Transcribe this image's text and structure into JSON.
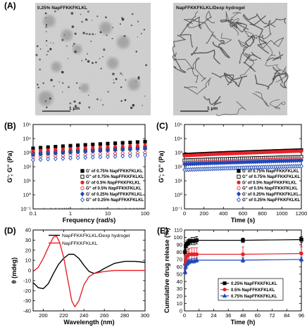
{
  "panels": {
    "A": {
      "label": "(A)",
      "image_left": {
        "caption": "0.25% NapFFKKFKLKL",
        "scalebar": "1 μm"
      },
      "image_right": {
        "caption": "NapFFKKFKLKL/Dexp hydrogel",
        "scalebar": "1 μm"
      }
    },
    "B": {
      "label": "(B)"
    },
    "C": {
      "label": "(C)"
    },
    "D": {
      "label": "(D)"
    },
    "E": {
      "label": "(E)"
    }
  },
  "chart_data": [
    {
      "id": "B",
      "type": "scatter",
      "xlabel": "Frequency (rad/s)",
      "ylabel": "G'; G'' (Pa)",
      "xscale": "log",
      "yscale": "log",
      "xlim": [
        0.1,
        100
      ],
      "ylim": [
        0.1,
        100000
      ],
      "xticks": [
        0.1,
        1,
        10,
        100
      ],
      "xticklabels": [
        "0.1",
        "1",
        "10",
        "100"
      ],
      "yticks": [
        0.1,
        1,
        10,
        100,
        1000,
        10000,
        100000
      ],
      "yticklabels": [
        "10⁻¹",
        "10⁰",
        "10¹",
        "10²",
        "10³",
        "10⁴",
        "10⁵"
      ],
      "legend": "bottom-right",
      "series": [
        {
          "name": "G' of 0.75% NapFFKKFKLKL",
          "color": "#000000",
          "marker": "square",
          "filled": true,
          "y_start": 2000,
          "y_end": 6000
        },
        {
          "name": "G'' of 0.75% NapFFKKFKLKL",
          "color": "#000000",
          "marker": "square",
          "filled": false,
          "y_start": 800,
          "y_end": 2100
        },
        {
          "name": "G' of 0.5% NapFFKKFKLKL",
          "color": "#e8222a",
          "marker": "circle",
          "filled": true,
          "y_start": 1300,
          "y_end": 3300
        },
        {
          "name": "G'' of 0.5% NapFFKKFKLKL",
          "color": "#e8222a",
          "marker": "circle",
          "filled": false,
          "y_start": 500,
          "y_end": 1000
        },
        {
          "name": "G' of 0.25% NapFFKKFKLKL",
          "color": "#1f48b8",
          "marker": "diamond",
          "filled": true,
          "y_start": 700,
          "y_end": 2000
        },
        {
          "name": "G'' of 0.25% NapFFKKFKLKL",
          "color": "#1f48b8",
          "marker": "diamond",
          "filled": false,
          "y_start": 300,
          "y_end": 650
        }
      ]
    },
    {
      "id": "C",
      "type": "scatter",
      "xlabel": "Time (s)",
      "ylabel": "G'; G'' (Pa)",
      "yscale": "log",
      "xlim": [
        0,
        1200
      ],
      "ylim": [
        0.1,
        100000
      ],
      "xticks": [
        0,
        200,
        400,
        600,
        800,
        1000,
        1200
      ],
      "xticklabels": [
        "0",
        "200",
        "400",
        "600",
        "800",
        "1000",
        "1200"
      ],
      "yticks": [
        0.1,
        1,
        10,
        100,
        1000,
        10000,
        100000
      ],
      "yticklabels": [
        "10⁻¹",
        "10⁰",
        "10¹",
        "10²",
        "10³",
        "10⁴",
        "10⁵"
      ],
      "legend": "bottom-right",
      "series": [
        {
          "name": "G' of 0.75% NapFFKKFKLKL",
          "color": "#000000",
          "marker": "square",
          "filled": true,
          "y_start": 700,
          "y_end": 1500
        },
        {
          "name": "G'' of 0.75% NapFFKKFKLKL",
          "color": "#000000",
          "marker": "square",
          "filled": false,
          "y_start": 280,
          "y_end": 500
        },
        {
          "name": "G' of 0.5% NapFFKKFKLKL",
          "color": "#e8222a",
          "marker": "circle",
          "filled": true,
          "y_start": 600,
          "y_end": 1300
        },
        {
          "name": "G'' of 0.5% NapFFKKFKLKL",
          "color": "#e8222a",
          "marker": "circle",
          "filled": false,
          "y_start": 180,
          "y_end": 350
        },
        {
          "name": "G' of 0.25% NapFFKKFKLKL",
          "color": "#1f48b8",
          "marker": "diamond",
          "filled": true,
          "y_start": 150,
          "y_end": 280
        },
        {
          "name": "G'' of 0.25% NapFFKKFKLKL",
          "color": "#1f48b8",
          "marker": "diamond",
          "filled": false,
          "y_start": 60,
          "y_end": 110
        }
      ]
    },
    {
      "id": "D",
      "type": "line",
      "xlabel": "Wavelength (nm)",
      "ylabel": "θ (mdeg)",
      "xlim": [
        190,
        300
      ],
      "ylim": [
        -40,
        40
      ],
      "xticks": [
        200,
        220,
        240,
        260,
        280,
        300
      ],
      "xticklabels": [
        "200",
        "220",
        "240",
        "260",
        "280",
        "300"
      ],
      "yticks": [
        -40,
        -30,
        -20,
        -10,
        0,
        10,
        20,
        30,
        40
      ],
      "yticklabels": [
        "-40",
        "-30",
        "-20",
        "-10",
        "0",
        "10",
        "20",
        "30",
        "40"
      ],
      "legend": "top-right",
      "series": [
        {
          "name": "NapFFKKFKLKL/Dexp hydrogel",
          "color": "#000000",
          "x": [
            190,
            195,
            200,
            205,
            210,
            215,
            220,
            225,
            230,
            235,
            240,
            245,
            250,
            255,
            260,
            270,
            280,
            290,
            300
          ],
          "y": [
            -12,
            -17,
            -18,
            -13,
            -3,
            6,
            12,
            16,
            16,
            12,
            5,
            -1,
            -3,
            -1,
            2,
            7,
            9,
            9,
            8
          ]
        },
        {
          "name": "NapFFKKFKLKL",
          "color": "#e8222a",
          "x": [
            190,
            195,
            200,
            205,
            210,
            213,
            216,
            220,
            225,
            228,
            231,
            235,
            240,
            245,
            250,
            260,
            270,
            280,
            290,
            300
          ],
          "y": [
            -1,
            3,
            12,
            23,
            33,
            34,
            28,
            13,
            -14,
            -30,
            -36,
            -30,
            -14,
            -6,
            -3,
            -1,
            0,
            0,
            0,
            0
          ]
        }
      ]
    },
    {
      "id": "E",
      "type": "line",
      "xlabel": "Time (h)",
      "ylabel": "Cumulative drug release (%)",
      "xlim": [
        0,
        96
      ],
      "ylim": [
        0,
        110
      ],
      "xticks": [
        0,
        12,
        24,
        36,
        48,
        60,
        72,
        84,
        96
      ],
      "xticklabels": [
        "0",
        "12",
        "24",
        "36",
        "48",
        "60",
        "72",
        "84",
        "96"
      ],
      "yticks": [
        0,
        10,
        20,
        30,
        40,
        50,
        60,
        70,
        80,
        90,
        100,
        110
      ],
      "yticklabels": [
        "0",
        "10",
        "20",
        "30",
        "40",
        "50",
        "60",
        "70",
        "80",
        "90",
        "100",
        "110"
      ],
      "legend": "lower-middle",
      "series": [
        {
          "name": "0.25% NapFFKKFKLKL",
          "color": "#000000",
          "marker": "square",
          "x": [
            0.5,
            1,
            2,
            3,
            4,
            6,
            8,
            10,
            48,
            96
          ],
          "y": [
            80,
            88,
            91,
            93,
            94,
            95,
            95,
            96,
            96,
            97
          ],
          "err": [
            4,
            4,
            4,
            4,
            4,
            5,
            5,
            5,
            3,
            4
          ]
        },
        {
          "name": "0.5% NapFFKKFKLKL",
          "color": "#e8222a",
          "marker": "circle",
          "x": [
            0.5,
            1,
            2,
            3,
            4,
            6,
            8,
            10,
            48,
            96
          ],
          "y": [
            63,
            70,
            74,
            76,
            77,
            77,
            77,
            77,
            77,
            78
          ],
          "err": [
            5,
            6,
            7,
            8,
            8,
            9,
            9,
            9,
            10,
            9
          ]
        },
        {
          "name": "0.75% NapFFKKFKLKL",
          "color": "#1f48b8",
          "marker": "triangle",
          "x": [
            0.5,
            1,
            2,
            3,
            4,
            6,
            8,
            10,
            48,
            96
          ],
          "y": [
            53,
            60,
            64,
            66,
            67,
            68,
            68,
            69,
            69,
            70
          ],
          "err": [
            3,
            3,
            3,
            3,
            3,
            3,
            3,
            3,
            3,
            3
          ]
        }
      ]
    }
  ]
}
